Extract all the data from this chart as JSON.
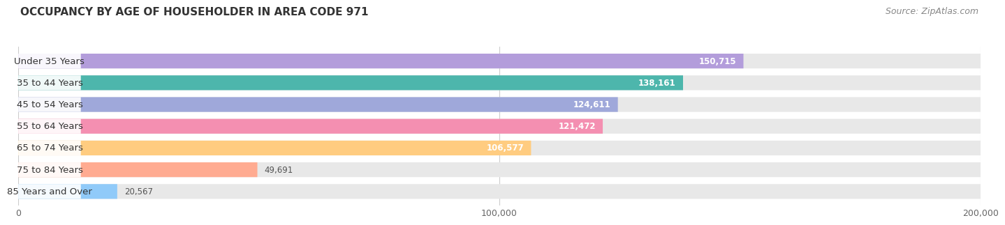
{
  "title": "OCCUPANCY BY AGE OF HOUSEHOLDER IN AREA CODE 971",
  "source": "Source: ZipAtlas.com",
  "categories": [
    "Under 35 Years",
    "35 to 44 Years",
    "45 to 54 Years",
    "55 to 64 Years",
    "65 to 74 Years",
    "75 to 84 Years",
    "85 Years and Over"
  ],
  "values": [
    150715,
    138161,
    124611,
    121472,
    106577,
    49691,
    20567
  ],
  "bar_colors": [
    "#b39ddb",
    "#4db6ac",
    "#9fa8da",
    "#f48fb1",
    "#ffcc80",
    "#ffab91",
    "#90caf9"
  ],
  "bar_bg_color": "#e8e8e8",
  "xlim_data": [
    0,
    200000
  ],
  "xticks": [
    0,
    100000,
    200000
  ],
  "xticklabels": [
    "0",
    "100,000",
    "200,000"
  ],
  "title_fontsize": 11,
  "source_fontsize": 9,
  "label_fontsize": 9.5,
  "value_fontsize": 8.5,
  "background_color": "#ffffff",
  "bar_height": 0.68,
  "value_white_threshold": 60000
}
